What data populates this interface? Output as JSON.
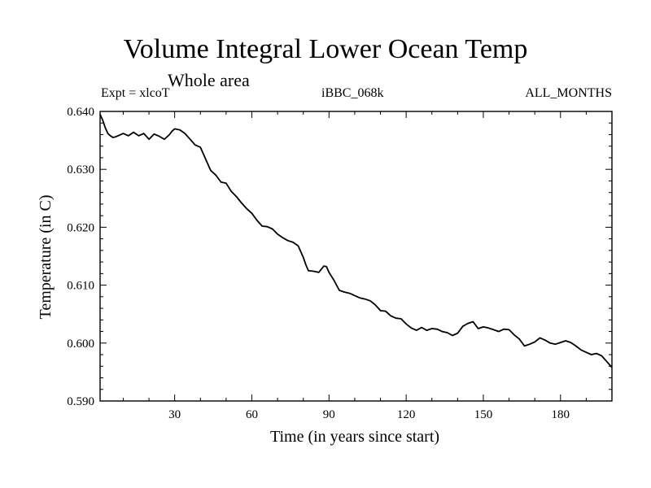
{
  "chart_data": {
    "type": "line",
    "title": "Volume Integral Lower Ocean Temp",
    "subtitle": "Whole area",
    "left_label": "Expt = xlcoT",
    "center_label": "iBBC_068k",
    "right_label": "ALL_MONTHS",
    "xlabel": "Time (in years since start)",
    "ylabel": "Temperature (in C)",
    "xlim": [
      1,
      200
    ],
    "ylim": [
      0.59,
      0.64
    ],
    "xticks": [
      30,
      60,
      90,
      120,
      150,
      180
    ],
    "xtick_labels": [
      "30",
      "60",
      "90",
      "120",
      "150",
      "180"
    ],
    "yticks": [
      0.59,
      0.6,
      0.61,
      0.62,
      0.63,
      0.64
    ],
    "ytick_labels": [
      "0.590",
      "0.600",
      "0.610",
      "0.620",
      "0.630",
      "0.640"
    ],
    "grid": false,
    "series": [
      {
        "name": "Temperature",
        "color": "#000000",
        "x": [
          1,
          2,
          3,
          4,
          5,
          6,
          7,
          8,
          9,
          10,
          12,
          14,
          16,
          18,
          20,
          22,
          24,
          26,
          28,
          29,
          30,
          32,
          34,
          36,
          38,
          40,
          42,
          44,
          46,
          48,
          50,
          52,
          54,
          56,
          58,
          60,
          62,
          64,
          66,
          68,
          70,
          72,
          74,
          76,
          78,
          80,
          81,
          82,
          84,
          86,
          88,
          89,
          90,
          92,
          94,
          96,
          98,
          100,
          102,
          104,
          106,
          108,
          110,
          112,
          114,
          116,
          118,
          120,
          122,
          124,
          126,
          128,
          130,
          132,
          134,
          136,
          138,
          140,
          142,
          144,
          146,
          148,
          150,
          152,
          154,
          156,
          158,
          160,
          162,
          164,
          166,
          168,
          170,
          172,
          174,
          176,
          178,
          180,
          182,
          184,
          186,
          188,
          190,
          192,
          194,
          196,
          198,
          200
        ],
        "values": [
          0.6395,
          0.6385,
          0.6372,
          0.6362,
          0.6358,
          0.6355,
          0.6356,
          0.6358,
          0.636,
          0.6362,
          0.6358,
          0.6364,
          0.6358,
          0.6362,
          0.6352,
          0.6361,
          0.6357,
          0.6352,
          0.636,
          0.6366,
          0.637,
          0.6368,
          0.6362,
          0.6352,
          0.6342,
          0.6338,
          0.6318,
          0.6298,
          0.629,
          0.6278,
          0.6276,
          0.6262,
          0.6253,
          0.6242,
          0.6232,
          0.6224,
          0.6212,
          0.6202,
          0.6201,
          0.6197,
          0.6188,
          0.6182,
          0.6177,
          0.6174,
          0.6168,
          0.6148,
          0.6135,
          0.6125,
          0.6124,
          0.6122,
          0.6133,
          0.6132,
          0.6122,
          0.6108,
          0.6091,
          0.6088,
          0.6086,
          0.6082,
          0.6078,
          0.6076,
          0.6073,
          0.6066,
          0.6056,
          0.6055,
          0.6047,
          0.6043,
          0.6042,
          0.6033,
          0.6026,
          0.6022,
          0.6027,
          0.6022,
          0.6025,
          0.6024,
          0.602,
          0.6018,
          0.6013,
          0.6017,
          0.6029,
          0.6034,
          0.6037,
          0.6025,
          0.6028,
          0.6026,
          0.6023,
          0.602,
          0.6024,
          0.6023,
          0.6014,
          0.6007,
          0.5995,
          0.5998,
          0.6002,
          0.6009,
          0.6005,
          0.6,
          0.5998,
          0.6001,
          0.6004,
          0.6001,
          0.5995,
          0.5988,
          0.5984,
          0.598,
          0.5982,
          0.5978,
          0.5968,
          0.5958
        ]
      }
    ]
  }
}
